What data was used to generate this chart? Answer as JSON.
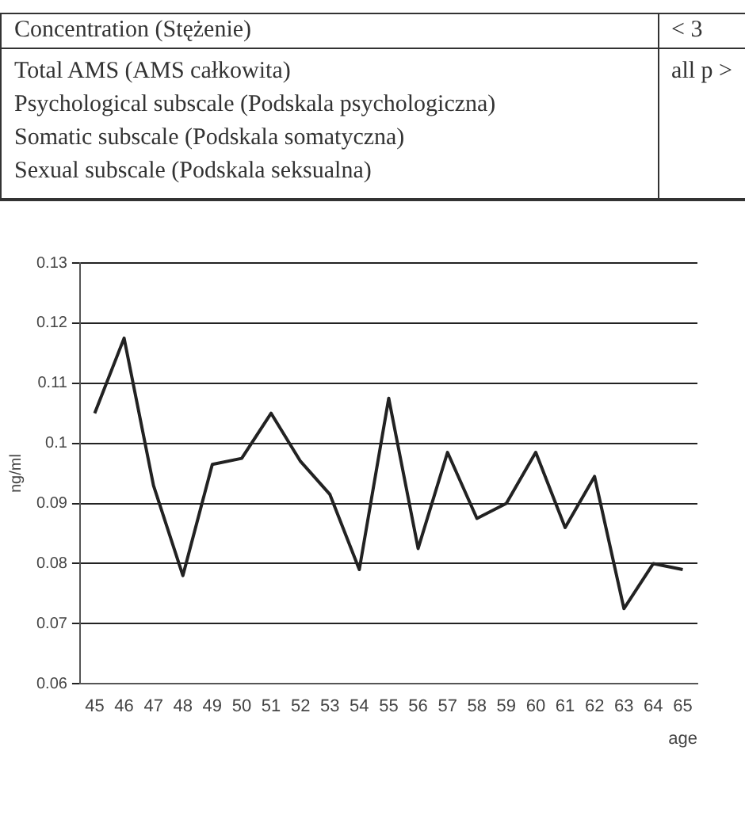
{
  "chart_data": {
    "type": "line",
    "ylabel": "ng/ml",
    "xlabel": "age",
    "annotations": [
      "Concentration (Stężenie)",
      "< 3",
      "Total AMS (AMS całkowita)",
      "all p >",
      "Psychological subscale (Podskala psychologiczna)",
      "Somatic subscale (Podskala somatyczna)",
      "Sexual subscale (Podskala seksualna)"
    ],
    "categories": [
      "45",
      "46",
      "47",
      "48",
      "49",
      "50",
      "51",
      "52",
      "53",
      "54",
      "55",
      "56",
      "57",
      "58",
      "59",
      "60",
      "61",
      "62",
      "63",
      "64",
      "65"
    ],
    "series": [
      {
        "color": "#222222",
        "values": [
          0.105,
          0.1175,
          0.093,
          0.078,
          0.0965,
          0.0975,
          0.105,
          0.097,
          0.0915,
          0.079,
          0.1075,
          0.0825,
          0.0985,
          0.0875,
          0.09,
          0.0985,
          0.086,
          0.0945,
          0.0725,
          0.08,
          0.079
        ]
      }
    ],
    "ylim": [
      0.06,
      0.13
    ],
    "yticks": [
      0.06,
      0.07,
      0.08,
      0.09,
      0.1,
      0.11,
      0.12,
      0.13
    ],
    "grid": "y",
    "legend": false,
    "marker": "none",
    "line_style": "solid"
  }
}
